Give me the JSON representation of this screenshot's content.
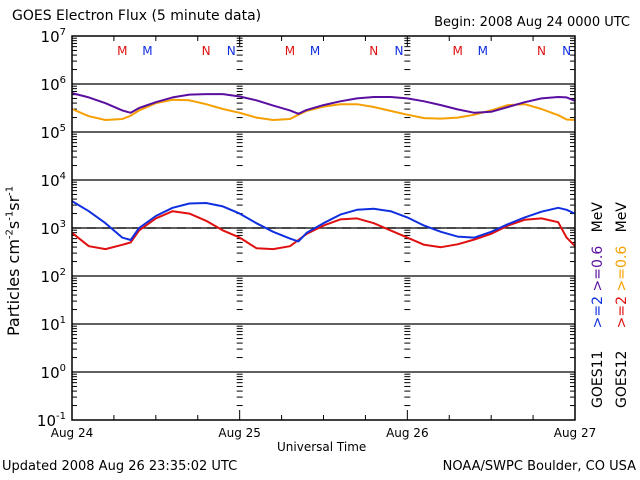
{
  "header": {
    "title": "GOES Electron Flux (5 minute data)",
    "begin": "Begin: 2008 Aug 24 0000 UTC"
  },
  "footer": {
    "updated": "Updated 2008 Aug 26 23:35:02 UTC",
    "credit": "NOAA/SWPC Boulder, CO USA"
  },
  "colors": {
    "goes11_06": "#5a0fa0",
    "goes12_06": "#f5a000",
    "goes11_2": "#1030e0",
    "goes12_2": "#e01010",
    "marker_M_red": "#e01010",
    "marker_blue": "#1030e0"
  },
  "chart_data": {
    "type": "line",
    "title": "GOES Electron Flux (5 minute data)",
    "xlabel": "Universal Time",
    "ylabel": "Particles cm-2 s-1 sr-1",
    "ylabel_parts": {
      "base": "Particles cm",
      "e1": "-2",
      "s": "s",
      "e2": "-1",
      "sr": "sr",
      "e3": "-1"
    },
    "yscale": "log",
    "ylim_log10": [
      -1,
      7
    ],
    "ytick_labels": [
      {
        "base": "10",
        "exp": "7",
        "log": 7
      },
      {
        "base": "10",
        "exp": "6",
        "log": 6
      },
      {
        "base": "10",
        "exp": "5",
        "log": 5
      },
      {
        "base": "10",
        "exp": "4",
        "log": 4
      },
      {
        "base": "10",
        "exp": "3",
        "log": 3
      },
      {
        "base": "10",
        "exp": "2",
        "log": 2
      },
      {
        "base": "10",
        "exp": "1",
        "log": 1
      },
      {
        "base": "10",
        "exp": "0",
        "log": 0
      },
      {
        "base": "10",
        "exp": "-1",
        "log": -1
      }
    ],
    "xlim_days": [
      0,
      3
    ],
    "xtick_labels": [
      "Aug 24",
      "Aug 25",
      "Aug 26",
      "Aug 27"
    ],
    "threshold_log10": 3,
    "grid": "decade lines",
    "legend": {
      "placement": "right",
      "goes11": {
        "name": "GOES11",
        "ch1": ">=2",
        "ch2": ">=0.6",
        "unit": "MeV"
      },
      "goes12": {
        "name": "GOES12",
        "ch1": ">=2",
        "ch2": ">=0.6",
        "unit": "MeV"
      }
    },
    "markers": [
      {
        "label": "M",
        "day": 0.3,
        "color": "red"
      },
      {
        "label": "M",
        "day": 0.45,
        "color": "blue"
      },
      {
        "label": "N",
        "day": 0.8,
        "color": "red"
      },
      {
        "label": "N",
        "day": 0.95,
        "color": "blue"
      },
      {
        "label": "M",
        "day": 1.3,
        "color": "red"
      },
      {
        "label": "M",
        "day": 1.45,
        "color": "blue"
      },
      {
        "label": "N",
        "day": 1.8,
        "color": "red"
      },
      {
        "label": "N",
        "day": 1.95,
        "color": "blue"
      },
      {
        "label": "M",
        "day": 2.3,
        "color": "red"
      },
      {
        "label": "M",
        "day": 2.45,
        "color": "blue"
      },
      {
        "label": "N",
        "day": 2.8,
        "color": "red"
      },
      {
        "label": "N",
        "day": 2.95,
        "color": "blue"
      }
    ],
    "x_days": [
      0,
      0.1,
      0.2,
      0.3,
      0.35,
      0.4,
      0.5,
      0.6,
      0.7,
      0.8,
      0.9,
      1.0,
      1.1,
      1.2,
      1.3,
      1.35,
      1.4,
      1.5,
      1.6,
      1.7,
      1.8,
      1.9,
      2.0,
      2.1,
      2.2,
      2.3,
      2.4,
      2.5,
      2.6,
      2.7,
      2.8,
      2.9,
      2.95,
      3.0
    ],
    "series": [
      {
        "name": "GOES11 >=0.6 MeV",
        "color_key": "goes11_06",
        "log10_values": [
          5.81,
          5.72,
          5.6,
          5.45,
          5.4,
          5.5,
          5.62,
          5.72,
          5.78,
          5.79,
          5.79,
          5.74,
          5.66,
          5.55,
          5.45,
          5.38,
          5.46,
          5.56,
          5.64,
          5.7,
          5.73,
          5.73,
          5.7,
          5.64,
          5.56,
          5.47,
          5.4,
          5.42,
          5.52,
          5.62,
          5.7,
          5.73,
          5.72,
          5.65
        ]
      },
      {
        "name": "GOES12 >=0.6 MeV",
        "color_key": "goes12_06",
        "log10_values": [
          5.48,
          5.33,
          5.25,
          5.27,
          5.34,
          5.45,
          5.6,
          5.67,
          5.66,
          5.58,
          5.48,
          5.4,
          5.3,
          5.25,
          5.27,
          5.36,
          5.44,
          5.53,
          5.58,
          5.58,
          5.52,
          5.44,
          5.36,
          5.29,
          5.28,
          5.3,
          5.36,
          5.45,
          5.56,
          5.58,
          5.48,
          5.35,
          5.26,
          5.25
        ]
      },
      {
        "name": "GOES11 >=2 MeV",
        "color_key": "goes11_2",
        "log10_values": [
          3.56,
          3.35,
          3.1,
          2.8,
          2.75,
          3.0,
          3.25,
          3.42,
          3.51,
          3.52,
          3.45,
          3.3,
          3.1,
          2.92,
          2.78,
          2.72,
          2.9,
          3.1,
          3.28,
          3.38,
          3.4,
          3.35,
          3.22,
          3.05,
          2.92,
          2.82,
          2.8,
          2.92,
          3.08,
          3.22,
          3.34,
          3.42,
          3.38,
          3.3
        ]
      },
      {
        "name": "GOES12 >=2 MeV",
        "color_key": "goes12_2",
        "log10_values": [
          2.9,
          2.62,
          2.56,
          2.65,
          2.7,
          2.95,
          3.2,
          3.35,
          3.3,
          3.15,
          2.95,
          2.8,
          2.58,
          2.56,
          2.62,
          2.75,
          2.88,
          3.05,
          3.18,
          3.2,
          3.1,
          2.95,
          2.8,
          2.65,
          2.6,
          2.66,
          2.76,
          2.88,
          3.05,
          3.17,
          3.2,
          3.12,
          2.8,
          2.62
        ]
      }
    ]
  }
}
